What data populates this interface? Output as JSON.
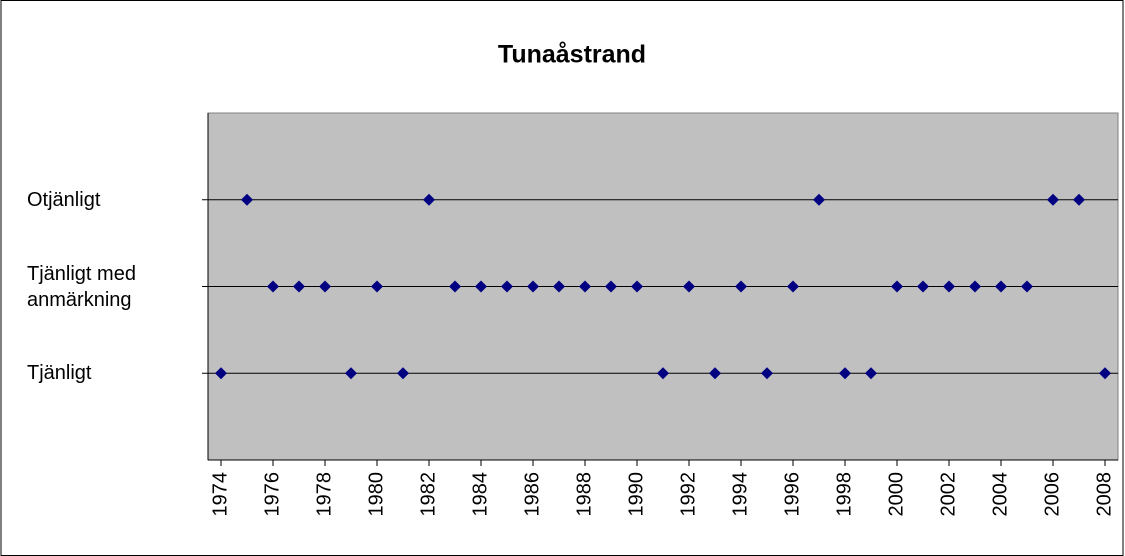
{
  "chart_data": {
    "type": "scatter",
    "title": "Tunaåstrand",
    "series": [
      {
        "name": "Tunaåstrand",
        "color": "#000080",
        "x": [
          1974,
          1975,
          1976,
          1977,
          1978,
          1979,
          1980,
          1981,
          1982,
          1983,
          1984,
          1985,
          1986,
          1987,
          1988,
          1989,
          1990,
          1991,
          1992,
          1993,
          1994,
          1995,
          1996,
          1997,
          1998,
          1999,
          2000,
          2001,
          2002,
          2003,
          2004,
          2005,
          2006,
          2007,
          2008
        ],
        "values": [
          1,
          3,
          2,
          2,
          2,
          1,
          2,
          1,
          3,
          2,
          2,
          2,
          2,
          2,
          2,
          2,
          2,
          1,
          2,
          1,
          2,
          1,
          2,
          3,
          1,
          1,
          2,
          2,
          2,
          2,
          2,
          2,
          3,
          3,
          1
        ]
      }
    ],
    "xlim": [
      1973.5,
      2008.5
    ],
    "xticks": [
      1974,
      1976,
      1978,
      1980,
      1982,
      1984,
      1986,
      1988,
      1990,
      1992,
      1994,
      1996,
      1998,
      2000,
      2002,
      2004,
      2006,
      2008
    ],
    "ylim": [
      0,
      4
    ],
    "yticks": [
      {
        "value": 1,
        "label": "Tjänligt"
      },
      {
        "value": 2,
        "label": "Tjänligt med anmärkning"
      },
      {
        "value": 3,
        "label": "Otjänligt"
      }
    ],
    "grid": true
  }
}
